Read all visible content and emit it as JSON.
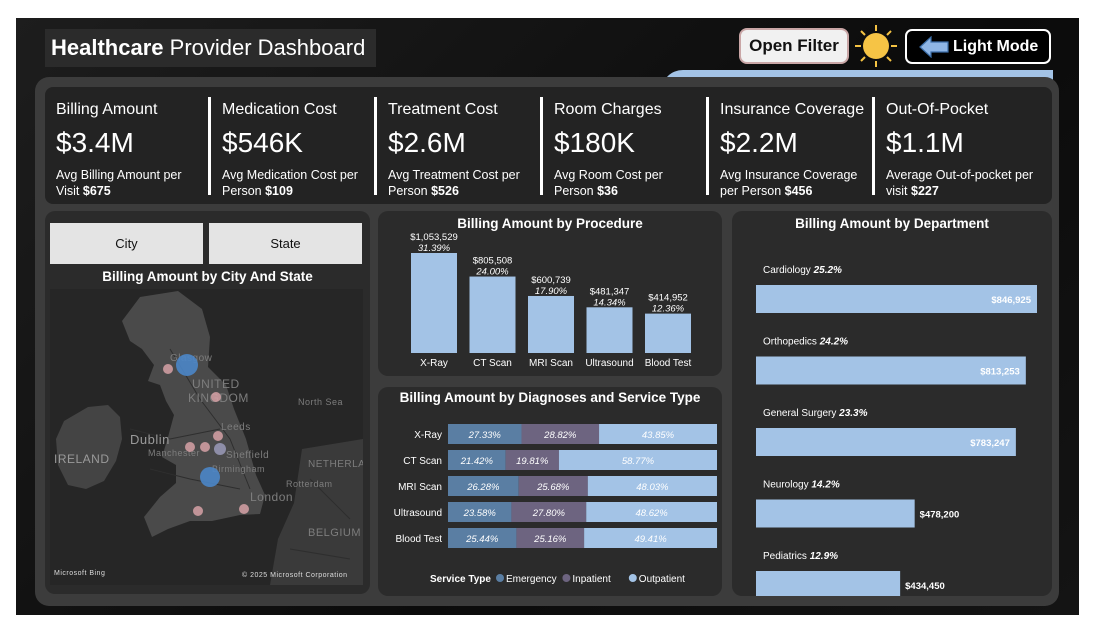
{
  "header": {
    "title_bold": "Healthcare",
    "title_rest": "Provider Dashboard",
    "filter_button": "Open Filter",
    "mode_button": "Light Mode"
  },
  "kpis": [
    {
      "title": "Billing Amount",
      "value": "$3.4M",
      "sub_text": "Avg Billing Amount per Visit ",
      "sub_value": "$675"
    },
    {
      "title": "Medication Cost",
      "value": "$546K",
      "sub_text": "Avg Medication Cost per Person ",
      "sub_value": "$109"
    },
    {
      "title": "Treatment Cost",
      "value": "$2.6M",
      "sub_text": "Avg Treatment Cost per Person ",
      "sub_value": "$526"
    },
    {
      "title": "Room Charges",
      "value": "$180K",
      "sub_text": "Avg Room Cost per Person ",
      "sub_value": "$36"
    },
    {
      "title": "Insurance Coverage",
      "value": "$2.2M",
      "sub_text": "Avg Insurance Coverage per Person ",
      "sub_value": "$456"
    },
    {
      "title": "Out-Of-Pocket",
      "value": "$1.1M",
      "sub_text": "Average Out-of-pocket per visit ",
      "sub_value": "$227"
    }
  ],
  "map_card": {
    "slicer_city": "City",
    "slicer_state": "State",
    "title": "Billing Amount by City And State",
    "labels": {
      "glasgow": "Glasgow",
      "uk1": "UNITED",
      "uk2": "KINGDOM",
      "dublin": "Dublin",
      "ireland": "IRELAND",
      "leeds": "Leeds",
      "manchester": "Manchester",
      "sheffield": "Sheffield",
      "birmingham": "Birmingham",
      "london": "London",
      "netherlands": "NETHERLAND",
      "rotterdam": "Rotterdam",
      "belgium": "BELGIUM",
      "northsea": "North Sea"
    },
    "logo_text": "Microsoft Bing",
    "copyright": "© 2025 Microsoft Corporation"
  },
  "chart_data": [
    {
      "type": "bar",
      "title": "Billing Amount by Procedure",
      "categories": [
        "X-Ray",
        "CT Scan",
        "MRI Scan",
        "Ultrasound",
        "Blood Test"
      ],
      "values": [
        1053529,
        805508,
        600739,
        481347,
        414952
      ],
      "value_labels": [
        "$1,053,529",
        "$805,508",
        "$600,739",
        "$481,347",
        "$414,952"
      ],
      "percent_labels": [
        "31.39%",
        "24.00%",
        "17.90%",
        "14.34%",
        "12.36%"
      ],
      "color": "#a3c3e6"
    },
    {
      "type": "bar",
      "orientation": "horizontal-stacked-100",
      "title": "Billing Amount by Diagnoses and Service Type",
      "categories": [
        "X-Ray",
        "CT Scan",
        "MRI Scan",
        "Ultrasound",
        "Blood Test"
      ],
      "legend_title": "Service Type",
      "series": [
        {
          "name": "Emergency",
          "color": "#5a7ea3",
          "values": [
            27.33,
            21.42,
            26.28,
            23.58,
            25.44
          ],
          "labels": [
            "27.33%",
            "21.42%",
            "26.28%",
            "23.58%",
            "25.44%"
          ]
        },
        {
          "name": "Inpatient",
          "color": "#6d6480",
          "values": [
            28.82,
            19.81,
            25.68,
            27.8,
            25.16
          ],
          "labels": [
            "28.82%",
            "19.81%",
            "25.68%",
            "27.80%",
            "25.16%"
          ]
        },
        {
          "name": "Outpatient",
          "color": "#a3c3e6",
          "values": [
            43.85,
            58.77,
            48.03,
            48.62,
            49.41
          ],
          "labels": [
            "43.85%",
            "58.77%",
            "48.03%",
            "48.62%",
            "49.41%"
          ]
        }
      ]
    },
    {
      "type": "bar",
      "orientation": "horizontal",
      "title": "Billing Amount by Department",
      "categories": [
        "Cardiology",
        "Orthopedics",
        "General Surgery",
        "Neurology",
        "Pediatrics"
      ],
      "percent_labels": [
        "25.2%",
        "24.2%",
        "23.3%",
        "14.2%",
        "12.9%"
      ],
      "values": [
        846925,
        813253,
        783247,
        478200,
        434450
      ],
      "value_labels": [
        "$846,925",
        "$813,253",
        "$783,247",
        "$478,200",
        "$434,450"
      ],
      "color": "#a3c3e6"
    }
  ]
}
